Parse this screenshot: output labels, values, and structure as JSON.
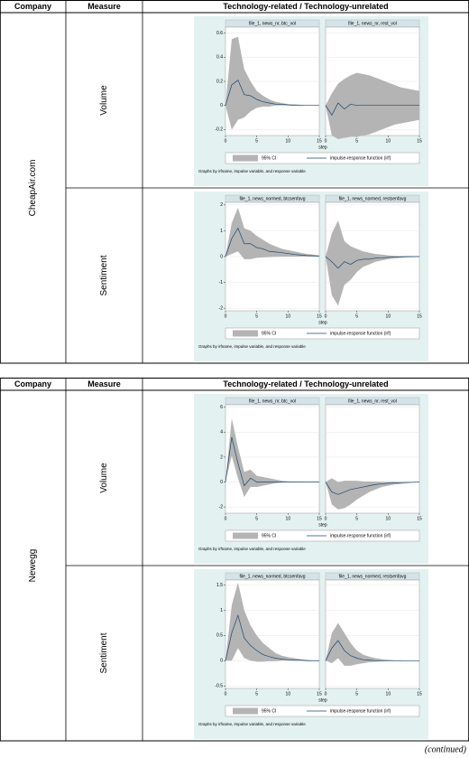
{
  "tables": [
    {
      "header": [
        "Company",
        "Measure",
        "Technology-related / Technology-unrelated"
      ],
      "company": "CheapAir.com",
      "rows": [
        {
          "measure": "Volume",
          "chart": {
            "type": "line",
            "ylim": [
              -0.25,
              0.65
            ],
            "yticks": [
              -0.2,
              0,
              0.2,
              0.4,
              0.6
            ],
            "xlim": [
              0,
              15
            ],
            "xticks": [
              0,
              5,
              10,
              15
            ],
            "xlabel": "step",
            "legend": [
              "95% CI",
              "impulse-response function (irf)"
            ],
            "note": "Graphs by irfname, impulse variable, and response variable",
            "band_color": "#b4b4b4",
            "line_color": "#1a476f",
            "panels": [
              {
                "title": "file_1, news_nr, btc_vol",
                "x": [
                  0,
                  1,
                  2,
                  3,
                  4,
                  5,
                  6,
                  7,
                  8,
                  9,
                  10,
                  11,
                  12,
                  13,
                  14,
                  15
                ],
                "irf": [
                  0,
                  0.17,
                  0.21,
                  0.09,
                  0.08,
                  0.05,
                  0.03,
                  0.02,
                  0.01,
                  0.01,
                  0.005,
                  0,
                  0,
                  0,
                  0,
                  0
                ],
                "upper": [
                  0,
                  0.55,
                  0.57,
                  0.3,
                  0.2,
                  0.12,
                  0.08,
                  0.05,
                  0.03,
                  0.02,
                  0.01,
                  0.01,
                  0.005,
                  0,
                  0,
                  0
                ],
                "lower": [
                  0,
                  -0.2,
                  -0.12,
                  -0.1,
                  -0.05,
                  -0.02,
                  -0.01,
                  -0.01,
                  0,
                  0,
                  0,
                  0,
                  0,
                  0,
                  0,
                  0
                ]
              },
              {
                "title": "file_1, news_nr, rest_vol",
                "x": [
                  0,
                  1,
                  2,
                  3,
                  4,
                  5,
                  6,
                  7,
                  8,
                  9,
                  10,
                  11,
                  12,
                  13,
                  14,
                  15
                ],
                "irf": [
                  0,
                  -0.08,
                  0.02,
                  -0.03,
                  0.01,
                  0,
                  0,
                  0,
                  0,
                  0,
                  0,
                  0,
                  0,
                  0,
                  0,
                  0
                ],
                "upper": [
                  0,
                  0.1,
                  0.18,
                  0.22,
                  0.25,
                  0.27,
                  0.26,
                  0.25,
                  0.23,
                  0.21,
                  0.19,
                  0.17,
                  0.15,
                  0.14,
                  0.13,
                  0.12
                ],
                "lower": [
                  0,
                  -0.25,
                  -0.28,
                  -0.27,
                  -0.26,
                  -0.26,
                  -0.25,
                  -0.24,
                  -0.22,
                  -0.2,
                  -0.18,
                  -0.16,
                  -0.15,
                  -0.14,
                  -0.13,
                  -0.12
                ]
              }
            ]
          }
        },
        {
          "measure": "Sentiment",
          "chart": {
            "type": "line",
            "ylim": [
              -2.1,
              2.1
            ],
            "yticks": [
              -2,
              -1,
              0,
              1,
              2
            ],
            "xlim": [
              0,
              15
            ],
            "xticks": [
              0,
              5,
              10,
              15
            ],
            "xlabel": "step",
            "legend": [
              "95% CI",
              "impulse-response function (irf)"
            ],
            "note": "Graphs by irfname, impulse variable, and response variable",
            "band_color": "#b4b4b4",
            "line_color": "#1a476f",
            "panels": [
              {
                "title": "file_1, news_normed, btcsenfavg",
                "x": [
                  0,
                  1,
                  2,
                  3,
                  4,
                  5,
                  6,
                  7,
                  8,
                  9,
                  10,
                  11,
                  12,
                  13,
                  14,
                  15
                ],
                "irf": [
                  0,
                  0.7,
                  1.1,
                  0.5,
                  0.5,
                  0.35,
                  0.3,
                  0.2,
                  0.18,
                  0.15,
                  0.12,
                  0.08,
                  0.06,
                  0.04,
                  0.03,
                  0.02
                ],
                "upper": [
                  0,
                  1.3,
                  1.9,
                  1.1,
                  1.0,
                  0.8,
                  0.65,
                  0.5,
                  0.4,
                  0.3,
                  0.25,
                  0.2,
                  0.15,
                  0.1,
                  0.08,
                  0.05
                ],
                "lower": [
                  0,
                  0.1,
                  0.2,
                  -0.1,
                  -0.1,
                  -0.05,
                  -0.03,
                  -0.02,
                  -0.01,
                  0,
                  0,
                  0,
                  0,
                  0,
                  0,
                  0
                ]
              },
              {
                "title": "file_1, news_normed, restsenfavg",
                "x": [
                  0,
                  1,
                  2,
                  3,
                  4,
                  5,
                  6,
                  7,
                  8,
                  9,
                  10,
                  11,
                  12,
                  13,
                  14,
                  15
                ],
                "irf": [
                  0,
                  -0.2,
                  -0.45,
                  -0.2,
                  -0.3,
                  -0.15,
                  -0.1,
                  -0.1,
                  -0.06,
                  -0.05,
                  -0.03,
                  -0.02,
                  -0.01,
                  0,
                  0,
                  0
                ],
                "upper": [
                  0,
                  0.9,
                  1.4,
                  0.6,
                  0.4,
                  0.3,
                  0.2,
                  0.15,
                  0.1,
                  0.08,
                  0.05,
                  0.03,
                  0.02,
                  0.01,
                  0.01,
                  0
                ],
                "lower": [
                  0,
                  -1.5,
                  -1.9,
                  -1.1,
                  -0.9,
                  -0.6,
                  -0.4,
                  -0.3,
                  -0.2,
                  -0.15,
                  -0.1,
                  -0.07,
                  -0.05,
                  -0.03,
                  -0.02,
                  -0.01
                ]
              }
            ]
          }
        }
      ]
    },
    {
      "header": [
        "Company",
        "Measure",
        "Technology-related / Technology-unrelated"
      ],
      "company": "Newegg",
      "rows": [
        {
          "measure": "Volume",
          "chart": {
            "type": "line",
            "ylim": [
              -2.5,
              6.2
            ],
            "yticks": [
              -2,
              0,
              2,
              4,
              6
            ],
            "xlim": [
              0,
              15
            ],
            "xticks": [
              0,
              5,
              10,
              15
            ],
            "xlabel": "step",
            "legend": [
              "95% CI",
              "impulse-response function (irf)"
            ],
            "note": "Graphs by irfname, impulse variable, and response variable",
            "band_color": "#b4b4b4",
            "line_color": "#1a476f",
            "panels": [
              {
                "title": "file_1, news_nr, btc_vol",
                "x": [
                  0,
                  1,
                  2,
                  3,
                  4,
                  5,
                  6,
                  7,
                  8,
                  9,
                  10,
                  11,
                  12,
                  13,
                  14,
                  15
                ],
                "irf": [
                  0,
                  3.6,
                  1.5,
                  -0.3,
                  0.3,
                  0,
                  0,
                  0,
                  0,
                  0,
                  0,
                  0,
                  0,
                  0,
                  0,
                  0
                ],
                "upper": [
                  0,
                  5.1,
                  2.8,
                  0.8,
                  1.0,
                  0.5,
                  0.4,
                  0.3,
                  0.2,
                  0.1,
                  0.05,
                  0.03,
                  0.02,
                  0.01,
                  0,
                  0
                ],
                "lower": [
                  0,
                  2.1,
                  0.3,
                  -1.2,
                  -0.4,
                  -0.4,
                  -0.3,
                  -0.2,
                  -0.1,
                  -0.05,
                  -0.03,
                  -0.02,
                  -0.01,
                  0,
                  0,
                  0
                ]
              },
              {
                "title": "file_1, news_nr, rest_vol",
                "x": [
                  0,
                  1,
                  2,
                  3,
                  4,
                  5,
                  6,
                  7,
                  8,
                  9,
                  10,
                  11,
                  12,
                  13,
                  14,
                  15
                ],
                "irf": [
                  0,
                  -0.8,
                  -1.0,
                  -0.8,
                  -0.6,
                  -0.5,
                  -0.4,
                  -0.3,
                  -0.2,
                  -0.15,
                  -0.1,
                  -0.07,
                  -0.05,
                  -0.03,
                  -0.02,
                  -0.01
                ],
                "upper": [
                  0,
                  0.3,
                  0,
                  0.1,
                  0.1,
                  0.1,
                  0.05,
                  0.05,
                  0.03,
                  0.02,
                  0.01,
                  0.01,
                  0,
                  0,
                  0,
                  0
                ],
                "lower": [
                  0,
                  -1.8,
                  -2.2,
                  -2.1,
                  -1.8,
                  -1.4,
                  -1.1,
                  -0.8,
                  -0.6,
                  -0.4,
                  -0.3,
                  -0.2,
                  -0.15,
                  -0.1,
                  -0.05,
                  -0.03
                ]
              }
            ]
          }
        },
        {
          "measure": "Sentiment",
          "chart": {
            "type": "line",
            "ylim": [
              -0.55,
              1.6
            ],
            "yticks": [
              -0.5,
              0,
              0.5,
              1,
              1.5
            ],
            "xlim": [
              0,
              15
            ],
            "xticks": [
              0,
              5,
              10,
              15
            ],
            "xlabel": "step",
            "legend": [
              "95% CI",
              "impulse-response function (irf)"
            ],
            "note": "Graphs by irfname, impulse variable, and response variable",
            "band_color": "#b4b4b4",
            "line_color": "#1a476f",
            "panels": [
              {
                "title": "file_1, news_normed, btcsenfavg",
                "x": [
                  0,
                  1,
                  2,
                  3,
                  4,
                  5,
                  6,
                  7,
                  8,
                  9,
                  10,
                  11,
                  12,
                  13,
                  14,
                  15
                ],
                "irf": [
                  0,
                  0.55,
                  0.9,
                  0.45,
                  0.3,
                  0.2,
                  0.12,
                  0.08,
                  0.05,
                  0.03,
                  0.02,
                  0.01,
                  0.01,
                  0,
                  0,
                  0
                ],
                "upper": [
                  0,
                  1.1,
                  1.55,
                  1.0,
                  0.7,
                  0.5,
                  0.35,
                  0.25,
                  0.15,
                  0.1,
                  0.07,
                  0.05,
                  0.03,
                  0.02,
                  0.01,
                  0.01
                ],
                "lower": [
                  0,
                  0,
                  0.25,
                  0.05,
                  0,
                  -0.02,
                  -0.02,
                  -0.01,
                  -0.01,
                  0,
                  0,
                  0,
                  0,
                  0,
                  0,
                  0
                ]
              },
              {
                "title": "file_1, news_normed, restsenfavg",
                "x": [
                  0,
                  1,
                  2,
                  3,
                  4,
                  5,
                  6,
                  7,
                  8,
                  9,
                  10,
                  11,
                  12,
                  13,
                  14,
                  15
                ],
                "irf": [
                  0,
                  0.25,
                  0.4,
                  0.2,
                  0.1,
                  0.05,
                  0.02,
                  0.01,
                  0,
                  0,
                  0,
                  0,
                  0,
                  0,
                  0,
                  0
                ],
                "upper": [
                  0,
                  0.55,
                  0.75,
                  0.55,
                  0.35,
                  0.2,
                  0.12,
                  0.08,
                  0.05,
                  0.03,
                  0.02,
                  0.01,
                  0.01,
                  0,
                  0,
                  0
                ],
                "lower": [
                  0,
                  -0.05,
                  0.05,
                  -0.1,
                  -0.1,
                  -0.07,
                  -0.05,
                  -0.03,
                  -0.02,
                  -0.01,
                  0,
                  0,
                  0,
                  0,
                  0,
                  0
                ]
              }
            ]
          }
        }
      ]
    }
  ],
  "footer": "(continued)"
}
